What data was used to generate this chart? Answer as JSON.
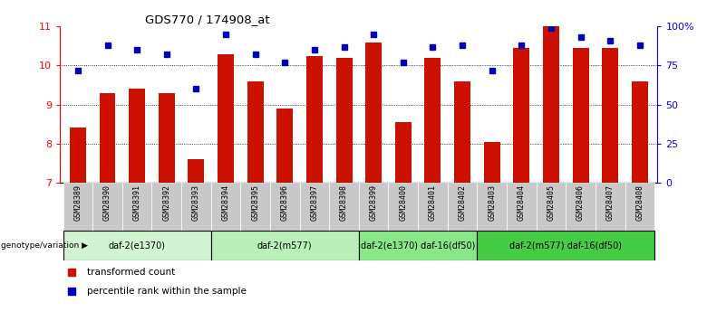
{
  "title": "GDS770 / 174908_at",
  "samples": [
    "GSM28389",
    "GSM28390",
    "GSM28391",
    "GSM28392",
    "GSM28393",
    "GSM28394",
    "GSM28395",
    "GSM28396",
    "GSM28397",
    "GSM28398",
    "GSM28399",
    "GSM28400",
    "GSM28401",
    "GSM28402",
    "GSM28403",
    "GSM28404",
    "GSM28405",
    "GSM28406",
    "GSM28407",
    "GSM28408"
  ],
  "red_values": [
    8.4,
    9.3,
    9.4,
    9.3,
    7.6,
    10.3,
    9.6,
    8.9,
    10.25,
    10.2,
    10.6,
    8.55,
    10.2,
    9.6,
    8.05,
    10.45,
    11.0,
    10.45,
    10.45,
    9.6
  ],
  "blue_pct": [
    72,
    88,
    85,
    82,
    60,
    95,
    82,
    77,
    85,
    87,
    95,
    77,
    87,
    88,
    72,
    88,
    99,
    93,
    91,
    88
  ],
  "ylim_left": [
    7,
    11
  ],
  "ylim_right": [
    0,
    100
  ],
  "yticks_left": [
    7,
    8,
    9,
    10,
    11
  ],
  "yticks_right": [
    0,
    25,
    50,
    75,
    100
  ],
  "groups": [
    {
      "label": "daf-2(e1370)",
      "start": 0,
      "end": 5,
      "color": "#d0f5d0"
    },
    {
      "label": "daf-2(m577)",
      "start": 5,
      "end": 10,
      "color": "#b8f0b8"
    },
    {
      "label": "daf-2(e1370) daf-16(df50)",
      "start": 10,
      "end": 14,
      "color": "#88e888"
    },
    {
      "label": "daf-2(m577) daf-16(df50)",
      "start": 14,
      "end": 20,
      "color": "#44cc44"
    }
  ],
  "group_label": "genotype/variation",
  "legend_red": "transformed count",
  "legend_blue": "percentile rank within the sample",
  "bar_color": "#cc1100",
  "dot_color": "#0000bb",
  "sample_box_color": "#c8c8c8",
  "plot_bg": "#ffffff"
}
